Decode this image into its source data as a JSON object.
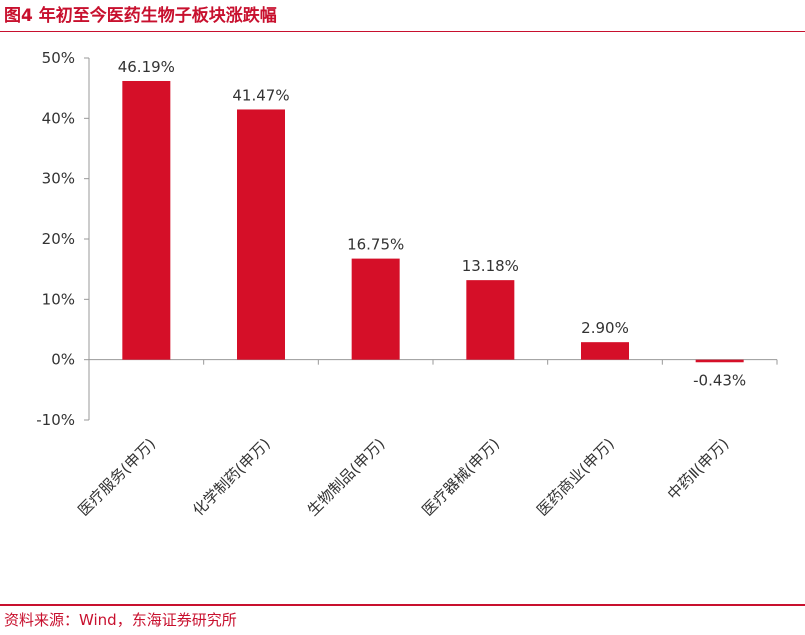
{
  "figure": {
    "title": "图4  年初至今医药生物子板块涨跌幅",
    "source": "资料来源：Wind，东海证券研究所"
  },
  "colors": {
    "accent": "#c8102e",
    "bar": "#d50f28",
    "text": "#333333",
    "axis": "#999999"
  },
  "chart_data": {
    "type": "bar",
    "title": "",
    "xlabel": "",
    "ylabel": "",
    "categories": [
      "医疗服务(申万)",
      "化学制药(申万)",
      "生物制品(申万)",
      "医疗器械(申万)",
      "医药商业(申万)",
      "中药Ⅱ(申万)"
    ],
    "values": [
      46.19,
      41.47,
      16.75,
      13.18,
      2.9,
      -0.43
    ],
    "value_labels": [
      "46.19%",
      "41.47%",
      "16.75%",
      "13.18%",
      "2.90%",
      "-0.43%"
    ],
    "ylim": [
      -10,
      50
    ],
    "yticks": [
      50,
      40,
      30,
      20,
      10,
      0,
      -10
    ],
    "ytick_labels": [
      "50%",
      "40%",
      "30%",
      "20%",
      "10%",
      "0%",
      "-10%"
    ],
    "grid": false,
    "legend": "none"
  }
}
